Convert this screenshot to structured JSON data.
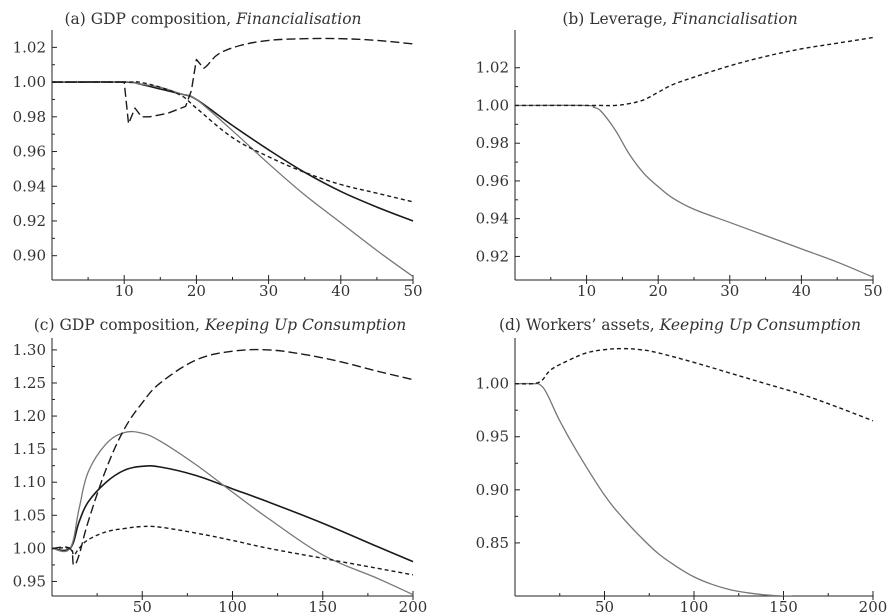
{
  "chart_data": [
    {
      "id": "a",
      "type": "line",
      "title_prefix": "(a) GDP composition, ",
      "title_emphasis": "Financialisation",
      "xlabel": "",
      "ylabel": "",
      "xlim": [
        0,
        50
      ],
      "ylim": [
        0.886,
        1.03
      ],
      "x_ticks": [
        10,
        20,
        30,
        40,
        50
      ],
      "x_tick_labels": [
        "10",
        "20",
        "30",
        "40",
        "50"
      ],
      "y_ticks": [
        0.9,
        0.92,
        0.94,
        0.96,
        0.98,
        1.0,
        1.02
      ],
      "y_tick_labels": [
        "0.90",
        "0.92",
        "0.94",
        "0.96",
        "0.98",
        "1.00",
        "1.02"
      ],
      "grid": false,
      "series": [
        {
          "style": "solid-black",
          "x": [
            0,
            10,
            12,
            15,
            18,
            20,
            25,
            30,
            35,
            40,
            45,
            50
          ],
          "y": [
            1.0,
            1.0,
            0.999,
            0.996,
            0.993,
            0.99,
            0.975,
            0.961,
            0.948,
            0.937,
            0.928,
            0.92
          ]
        },
        {
          "style": "solid-gray",
          "x": [
            0,
            10,
            12,
            15,
            18,
            20,
            25,
            30,
            35,
            40,
            45,
            50
          ],
          "y": [
            1.0,
            1.0,
            0.999,
            0.997,
            0.993,
            0.99,
            0.972,
            0.953,
            0.935,
            0.919,
            0.903,
            0.888
          ]
        },
        {
          "style": "dashed",
          "x": [
            0,
            10,
            10.6,
            11.5,
            12.4,
            13.5,
            16,
            18.5,
            19.3,
            20,
            21,
            23,
            26,
            30,
            35,
            40,
            45,
            50
          ],
          "y": [
            1.0,
            1.0,
            0.976,
            0.985,
            0.98,
            0.98,
            0.982,
            0.986,
            0.995,
            1.013,
            1.008,
            1.016,
            1.021,
            1.024,
            1.025,
            1.025,
            1.024,
            1.022
          ]
        },
        {
          "style": "dotted",
          "x": [
            0,
            10,
            12,
            15,
            18,
            20,
            25,
            30,
            35,
            40,
            45,
            50
          ],
          "y": [
            1.0,
            1.0,
            1.0,
            0.997,
            0.992,
            0.985,
            0.968,
            0.957,
            0.948,
            0.941,
            0.936,
            0.931
          ]
        }
      ]
    },
    {
      "id": "b",
      "type": "line",
      "title_prefix": "(b) Leverage, ",
      "title_emphasis": "Financialisation",
      "xlabel": "",
      "ylabel": "",
      "xlim": [
        0,
        50
      ],
      "ylim": [
        0.9075,
        1.04
      ],
      "x_ticks": [
        10,
        20,
        30,
        40,
        50
      ],
      "x_tick_labels": [
        "10",
        "20",
        "30",
        "40",
        "50"
      ],
      "y_ticks": [
        0.92,
        0.94,
        0.96,
        0.98,
        1.0,
        1.02
      ],
      "y_tick_labels": [
        "0.92",
        "0.94",
        "0.96",
        "0.98",
        "1.00",
        "1.02"
      ],
      "grid": false,
      "series": [
        {
          "style": "solid-gray",
          "x": [
            0,
            10,
            11,
            12,
            14,
            16,
            18,
            20,
            22,
            25,
            30,
            35,
            40,
            45,
            50
          ],
          "y": [
            1.0,
            1.0,
            0.999,
            0.997,
            0.987,
            0.974,
            0.964,
            0.957,
            0.951,
            0.945,
            0.938,
            0.931,
            0.924,
            0.917,
            0.909
          ]
        },
        {
          "style": "dotted",
          "x": [
            0,
            10,
            12,
            14,
            16,
            18,
            20,
            22,
            25,
            30,
            35,
            40,
            45,
            50
          ],
          "y": [
            1.0,
            1.0,
            1.0,
            1.0,
            1.001,
            1.003,
            1.007,
            1.011,
            1.015,
            1.021,
            1.026,
            1.03,
            1.033,
            1.036
          ]
        }
      ]
    },
    {
      "id": "c",
      "type": "line",
      "title_prefix": "(c) GDP composition, ",
      "title_emphasis": "Keeping Up Consumption",
      "xlabel": "",
      "ylabel": "",
      "xlim": [
        0,
        200
      ],
      "ylim": [
        0.928,
        1.318
      ],
      "x_ticks": [
        50,
        100,
        150,
        200
      ],
      "x_tick_labels": [
        "50",
        "100",
        "150",
        "200"
      ],
      "y_ticks": [
        0.95,
        1.0,
        1.05,
        1.1,
        1.15,
        1.2,
        1.25,
        1.3
      ],
      "y_tick_labels": [
        "0.95",
        "1.00",
        "1.05",
        "1.10",
        "1.15",
        "1.20",
        "1.25",
        "1.30"
      ],
      "grid": false,
      "series": [
        {
          "style": "solid-black",
          "x": [
            0,
            10,
            15,
            20,
            30,
            40,
            50,
            60,
            80,
            100,
            120,
            150,
            180,
            200
          ],
          "y": [
            1.0,
            1.0,
            1.04,
            1.07,
            1.1,
            1.118,
            1.124,
            1.123,
            1.11,
            1.09,
            1.07,
            1.038,
            1.003,
            0.98
          ]
        },
        {
          "style": "solid-gray",
          "x": [
            0,
            10,
            15,
            20,
            30,
            40,
            50,
            60,
            80,
            100,
            120,
            150,
            180,
            200
          ],
          "y": [
            1.0,
            1.0,
            1.06,
            1.115,
            1.158,
            1.175,
            1.174,
            1.162,
            1.126,
            1.085,
            1.045,
            0.99,
            0.955,
            0.93
          ]
        },
        {
          "style": "dashed",
          "x": [
            0,
            10,
            12,
            15,
            20,
            30,
            40,
            50,
            60,
            80,
            100,
            120,
            140,
            160,
            180,
            200
          ],
          "y": [
            1.0,
            1.0,
            0.975,
            0.99,
            1.04,
            1.12,
            1.18,
            1.22,
            1.25,
            1.285,
            1.298,
            1.3,
            1.293,
            1.282,
            1.268,
            1.255
          ]
        },
        {
          "style": "dotted",
          "x": [
            0,
            10,
            12,
            15,
            20,
            30,
            40,
            50,
            60,
            80,
            100,
            120,
            150,
            180,
            200
          ],
          "y": [
            1.0,
            1.0,
            0.99,
            1.0,
            1.013,
            1.025,
            1.03,
            1.033,
            1.032,
            1.023,
            1.012,
            1.0,
            0.985,
            0.97,
            0.96
          ]
        }
      ]
    },
    {
      "id": "d",
      "type": "line",
      "title_prefix": "(d) Workers’ assets, ",
      "title_emphasis": "Keeping Up Consumption",
      "xlabel": "",
      "ylabel": "",
      "xlim": [
        0,
        200
      ],
      "ylim": [
        0.8,
        1.043
      ],
      "x_ticks": [
        50,
        100,
        150,
        200
      ],
      "x_tick_labels": [
        "50",
        "100",
        "150",
        "200"
      ],
      "y_ticks": [
        0.85,
        0.9,
        0.95,
        1.0
      ],
      "y_tick_labels": [
        "0.85",
        "0.90",
        "0.95",
        "1.00"
      ],
      "grid": false,
      "series": [
        {
          "style": "solid-gray",
          "x": [
            0,
            10,
            14,
            18,
            25,
            35,
            50,
            60,
            70,
            80,
            90,
            100,
            110,
            120,
            130,
            140,
            150,
            155
          ],
          "y": [
            1.0,
            1.0,
            0.999,
            0.99,
            0.965,
            0.935,
            0.895,
            0.874,
            0.856,
            0.84,
            0.828,
            0.818,
            0.811,
            0.806,
            0.803,
            0.801,
            0.8,
            0.8
          ]
        },
        {
          "style": "dotted",
          "x": [
            0,
            10,
            15,
            20,
            30,
            40,
            50,
            60,
            70,
            80,
            100,
            120,
            140,
            160,
            180,
            200
          ],
          "y": [
            1.0,
            1.0,
            1.003,
            1.013,
            1.022,
            1.029,
            1.032,
            1.033,
            1.032,
            1.029,
            1.02,
            1.01,
            1.0,
            0.99,
            0.978,
            0.965
          ]
        }
      ]
    }
  ]
}
